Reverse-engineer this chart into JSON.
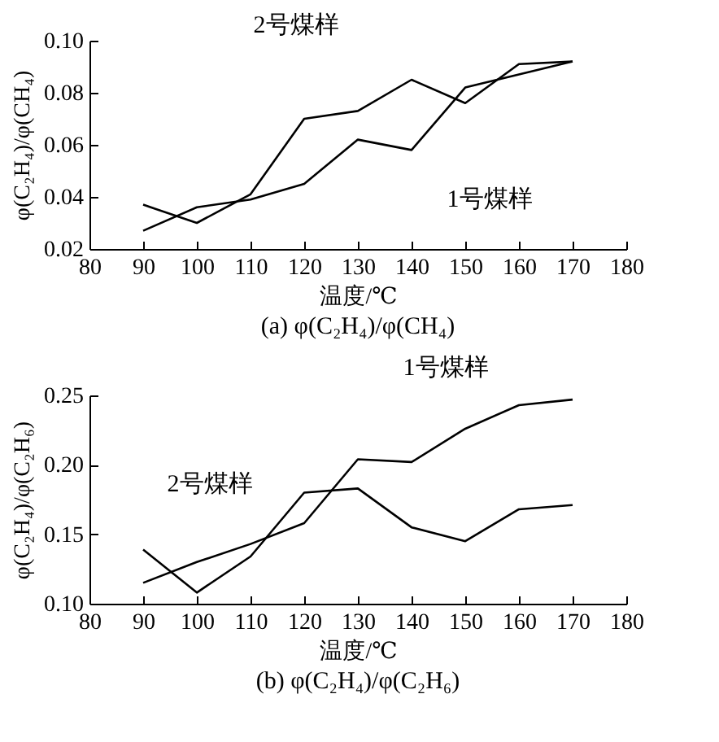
{
  "chart_data": [
    {
      "type": "line",
      "xlabel": "温度/℃",
      "ylabel": "φ(C₂H₄)/φ(CH₄)",
      "annotations": [
        "(a) φ(C₂H₄)/φ(CH₄)"
      ],
      "x": [
        90,
        100,
        110,
        120,
        130,
        140,
        150,
        160,
        170
      ],
      "series": [
        {
          "name": "1号煤样",
          "color": "#000000",
          "values": [
            0.027,
            0.036,
            0.039,
            0.045,
            0.062,
            0.058,
            0.082,
            0.087,
            0.092
          ]
        },
        {
          "name": "2号煤样",
          "color": "#000000",
          "values": [
            0.037,
            0.03,
            0.041,
            0.07,
            0.073,
            0.085,
            0.076,
            0.091,
            0.092
          ]
        }
      ],
      "xlim": [
        80,
        180
      ],
      "xticks": [
        80,
        90,
        100,
        110,
        120,
        130,
        140,
        150,
        160,
        170,
        180
      ],
      "ylim": [
        0.02,
        0.1
      ],
      "yticks": [
        {
          "value": 0.02,
          "label": "0.02"
        },
        {
          "value": 0.04,
          "label": "0.04"
        },
        {
          "value": 0.06,
          "label": "0.06"
        },
        {
          "value": 0.08,
          "label": "0.08"
        },
        {
          "value": 0.1,
          "label": "0.10"
        }
      ],
      "marker": "none",
      "line_style": "solid"
    },
    {
      "type": "line",
      "xlabel": "温度/℃",
      "ylabel": "φ(C₂H₄)/φ(C₂H₆)",
      "annotations": [
        "(b) φ(C₂H₄)/φ(C₂H₆)"
      ],
      "x": [
        90,
        100,
        110,
        120,
        130,
        140,
        150,
        160,
        170
      ],
      "series": [
        {
          "name": "1号煤样",
          "color": "#000000",
          "values": [
            0.115,
            0.13,
            0.143,
            0.158,
            0.204,
            0.202,
            0.226,
            0.243,
            0.247
          ]
        },
        {
          "name": "2号煤样",
          "color": "#000000",
          "values": [
            0.139,
            0.108,
            0.134,
            0.18,
            0.183,
            0.155,
            0.145,
            0.168,
            0.171
          ]
        }
      ],
      "xlim": [
        80,
        180
      ],
      "xticks": [
        80,
        90,
        100,
        110,
        120,
        130,
        140,
        150,
        160,
        170,
        180
      ],
      "ylim": [
        0.1,
        0.25
      ],
      "yticks": [
        {
          "value": 0.1,
          "label": "0.10"
        },
        {
          "value": 0.15,
          "label": "0.15"
        },
        {
          "value": 0.2,
          "label": "0.20"
        },
        {
          "value": 0.25,
          "label": "0.25"
        }
      ],
      "marker": "none",
      "line_style": "solid"
    }
  ]
}
